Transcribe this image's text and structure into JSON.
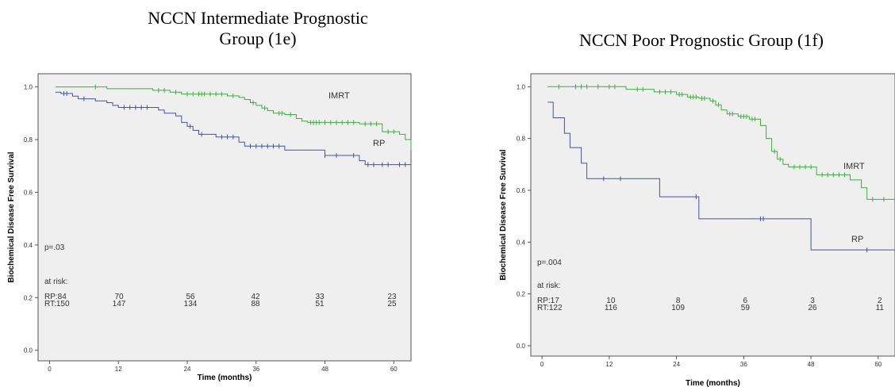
{
  "chart_data": [
    {
      "type": "line",
      "title": "NCCN Intermediate Prognostic Group (1e)",
      "title_lines": [
        "NCCN Intermediate Prognostic",
        "Group (1e)"
      ],
      "xlabel": "Time (months)",
      "ylabel": "Biochemical Disease Free Survival",
      "xlim": [
        -2,
        63
      ],
      "ylim": [
        -0.04,
        1.05
      ],
      "xticks": [
        0,
        12,
        24,
        36,
        48,
        60
      ],
      "yticks": [
        0.0,
        0.2,
        0.4,
        0.6,
        0.8,
        1.0
      ],
      "ytick_labels": [
        "0.0",
        "0.2",
        "0.4",
        "0.6",
        "0.8",
        "1.0"
      ],
      "pvalue": "p=.03",
      "risk_label": "at risk:",
      "risk_rows": [
        {
          "label": "RP:84",
          "values": [
            "70",
            "56",
            "42",
            "33",
            "23"
          ]
        },
        {
          "label": "RT:150",
          "values": [
            "147",
            "134",
            "88",
            "51",
            "25"
          ]
        }
      ],
      "series": [
        {
          "name": "IMRT",
          "color": "#3fae3f",
          "steps": [
            [
              1,
              1.0
            ],
            [
              10,
              0.993
            ],
            [
              18,
              0.987
            ],
            [
              21,
              0.98
            ],
            [
              23,
              0.973
            ],
            [
              31,
              0.966
            ],
            [
              33,
              0.96
            ],
            [
              34,
              0.952
            ],
            [
              35,
              0.94
            ],
            [
              36,
              0.93
            ],
            [
              37,
              0.92
            ],
            [
              38,
              0.91
            ],
            [
              39,
              0.9
            ],
            [
              41,
              0.895
            ],
            [
              43,
              0.88
            ],
            [
              44,
              0.87
            ],
            [
              45,
              0.865
            ],
            [
              54,
              0.86
            ],
            [
              58,
              0.83
            ],
            [
              61,
              0.82
            ],
            [
              62,
              0.8
            ],
            [
              63,
              0.76
            ]
          ],
          "censor_x": [
            8,
            19,
            20,
            22,
            24,
            25,
            26,
            26.5,
            27,
            28,
            29,
            30,
            32,
            35.5,
            37.5,
            40,
            40.5,
            42,
            45.5,
            46,
            46.5,
            47,
            48,
            49,
            50,
            51,
            52,
            53,
            55,
            56,
            57,
            59,
            60
          ]
        },
        {
          "name": "RP",
          "color": "#4055a8",
          "steps": [
            [
              1,
              0.98
            ],
            [
              2,
              0.975
            ],
            [
              4,
              0.965
            ],
            [
              5,
              0.955
            ],
            [
              8,
              0.947
            ],
            [
              10,
              0.94
            ],
            [
              11,
              0.93
            ],
            [
              12,
              0.922
            ],
            [
              19,
              0.912
            ],
            [
              20,
              0.9
            ],
            [
              22,
              0.89
            ],
            [
              23,
              0.865
            ],
            [
              24,
              0.85
            ],
            [
              25,
              0.835
            ],
            [
              26,
              0.82
            ],
            [
              29,
              0.81
            ],
            [
              33,
              0.79
            ],
            [
              34,
              0.775
            ],
            [
              41,
              0.76
            ],
            [
              48,
              0.74
            ],
            [
              54,
              0.72
            ],
            [
              55,
              0.705
            ],
            [
              63,
              0.705
            ]
          ],
          "censor_x": [
            2.5,
            3,
            6,
            13,
            14,
            15,
            16,
            17,
            24.5,
            26.5,
            30,
            31,
            32,
            35,
            36,
            37,
            38,
            39,
            40,
            48,
            50,
            53,
            55.5,
            56.5,
            58,
            59,
            61,
            62
          ]
        }
      ]
    },
    {
      "type": "line",
      "title": "NCCN Poor Prognostic Group (1f)",
      "title_lines": [
        "NCCN Poor Prognostic Group (1f)"
      ],
      "xlabel": "Time (months)",
      "ylabel": "Biochemical Disease Free Survival",
      "xlim": [
        -2,
        63
      ],
      "ylim": [
        -0.04,
        1.05
      ],
      "xticks": [
        0,
        12,
        24,
        36,
        48,
        60
      ],
      "yticks": [
        0.0,
        0.2,
        0.4,
        0.6,
        0.8,
        1.0
      ],
      "ytick_labels": [
        "0.0",
        "0.2",
        "0.4",
        "0.6",
        "0.8",
        "1.0"
      ],
      "pvalue": "p=.004",
      "risk_label": "at risk:",
      "risk_rows": [
        {
          "label": "RP:17",
          "values": [
            "10",
            "8",
            "6",
            "3",
            "2"
          ]
        },
        {
          "label": "RT:122",
          "values": [
            "116",
            "109",
            "59",
            "26",
            "11"
          ]
        }
      ],
      "series": [
        {
          "name": "IMRT",
          "color": "#3fae3f",
          "steps": [
            [
              1,
              1.0
            ],
            [
              15,
              0.99
            ],
            [
              20,
              0.98
            ],
            [
              24,
              0.97
            ],
            [
              26,
              0.96
            ],
            [
              28,
              0.955
            ],
            [
              30,
              0.945
            ],
            [
              31,
              0.93
            ],
            [
              32,
              0.91
            ],
            [
              33,
              0.895
            ],
            [
              35,
              0.885
            ],
            [
              37,
              0.875
            ],
            [
              39,
              0.85
            ],
            [
              40,
              0.8
            ],
            [
              41,
              0.75
            ],
            [
              42,
              0.72
            ],
            [
              43,
              0.7
            ],
            [
              44,
              0.69
            ],
            [
              49,
              0.66
            ],
            [
              55,
              0.64
            ],
            [
              57,
              0.61
            ],
            [
              58,
              0.565
            ],
            [
              63,
              0.565
            ]
          ],
          "censor_x": [
            3,
            6,
            7,
            8,
            10,
            12,
            13,
            17,
            18,
            21,
            22,
            23,
            24.5,
            25,
            26.5,
            27,
            27.5,
            28.5,
            29,
            30.5,
            31.5,
            33.5,
            34,
            35.5,
            36,
            36.5,
            37.5,
            38,
            41.5,
            42.5,
            45,
            46,
            47,
            48,
            50,
            51,
            52,
            53,
            54,
            59,
            61
          ]
        },
        {
          "name": "RP",
          "color": "#4055a8",
          "steps": [
            [
              1,
              0.94
            ],
            [
              2,
              0.88
            ],
            [
              4,
              0.82
            ],
            [
              5,
              0.765
            ],
            [
              7,
              0.705
            ],
            [
              8,
              0.645
            ],
            [
              21,
              0.575
            ],
            [
              28,
              0.49
            ],
            [
              48,
              0.37
            ],
            [
              63,
              0.37
            ]
          ],
          "censor_x": [
            11,
            14,
            27.5,
            39,
            39.5,
            58
          ]
        }
      ]
    }
  ]
}
